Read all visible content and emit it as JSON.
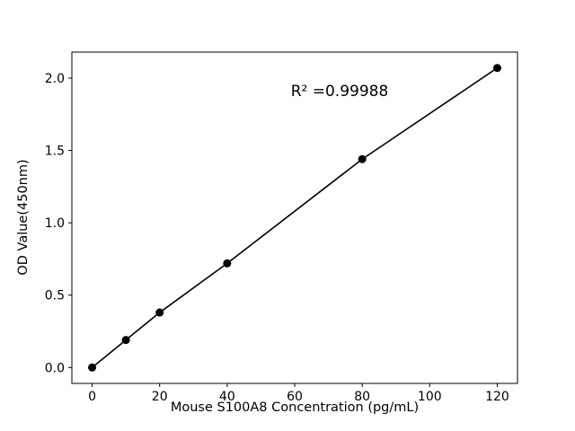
{
  "chart_data": {
    "type": "scatter",
    "title": "",
    "xlabel": "Mouse S100A8 Concentration (pg/mL)",
    "ylabel": "OD Value(450nm)",
    "annotation": "R² =0.99988",
    "x": [
      0,
      10,
      20,
      40,
      80,
      120
    ],
    "y": [
      0.0,
      0.19,
      0.38,
      0.72,
      1.44,
      2.07
    ],
    "xlim": [
      -6,
      126
    ],
    "ylim": [
      -0.11,
      2.18
    ],
    "xticks": [
      0,
      20,
      40,
      60,
      80,
      100,
      120
    ],
    "yticks": [
      0.0,
      0.5,
      1.0,
      1.5,
      2.0
    ],
    "line_color": "#000000",
    "marker_color": "#000000",
    "background_color": "#ffffff",
    "grid": false,
    "legend": "none"
  }
}
